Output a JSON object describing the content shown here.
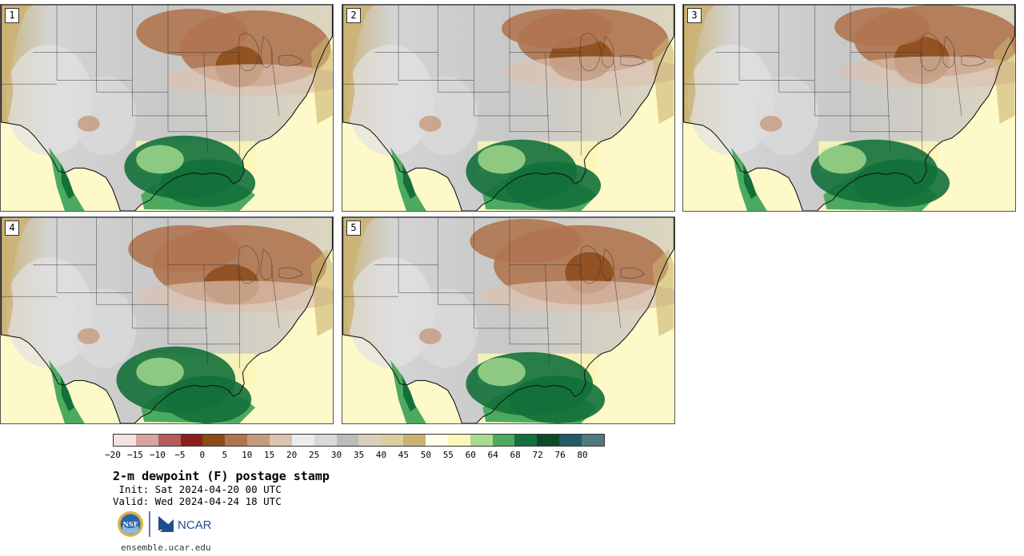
{
  "panels": [
    {
      "label": "1"
    },
    {
      "label": "2"
    },
    {
      "label": "3"
    },
    {
      "label": "4"
    },
    {
      "label": "5"
    }
  ],
  "colorbar": {
    "colors": [
      "#f3e4e4",
      "#d8a3a3",
      "#b45c5c",
      "#8f1f1f",
      "#8c4a18",
      "#b07550",
      "#c69a7d",
      "#dcc2b0",
      "#ececec",
      "#d8d8d8",
      "#bcbcbc",
      "#d6d0bc",
      "#dcce9e",
      "#ccb270",
      "#ffffea",
      "#fbf7b6",
      "#a8dc90",
      "#4caa60",
      "#13703a",
      "#0c4a2a",
      "#225a66",
      "#507a80"
    ],
    "ticks": [
      "−20",
      "−15",
      "−10",
      "−5",
      "0",
      "5",
      "10",
      "15",
      "20",
      "25",
      "30",
      "35",
      "40",
      "45",
      "50",
      "55",
      "60",
      "64",
      "68",
      "72",
      "76",
      "80"
    ]
  },
  "title": "2-m dewpoint (F) postage stamp",
  "init": " Init: Sat 2024-04-20 00 UTC",
  "valid": "Valid: Wed 2024-04-24 18 UTC",
  "logos": {
    "nsf": "NSF",
    "ncar": "NCAR"
  },
  "footer": "ensemble.ucar.edu"
}
